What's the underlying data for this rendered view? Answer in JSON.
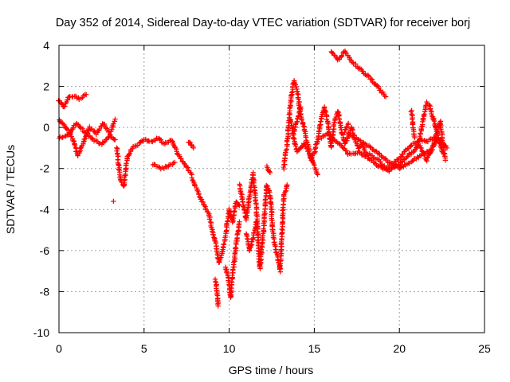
{
  "chart_data": {
    "type": "scatter",
    "title": "Day 352 of 2014, Sidereal Day-to-day VTEC variation (SDTVAR) for receiver borj",
    "xlabel": "GPS time / hours",
    "ylabel": "SDTVAR / TECUs",
    "xlim": [
      0,
      25
    ],
    "ylim": [
      -10,
      4
    ],
    "xticks": [
      0,
      5,
      10,
      15,
      20,
      25
    ],
    "yticks": [
      -10,
      -8,
      -6,
      -4,
      -2,
      0,
      2,
      4
    ],
    "grid": true,
    "marker": "+",
    "color": "#ff0000",
    "series": [
      {
        "name": "SDTVAR",
        "segments": [
          [
            [
              0.0,
              1.3
            ],
            [
              0.3,
              1.0
            ],
            [
              0.6,
              1.5
            ],
            [
              0.9,
              1.5
            ],
            [
              1.2,
              1.4
            ],
            [
              1.6,
              1.6
            ]
          ],
          [
            [
              0.0,
              0.4
            ],
            [
              0.4,
              0.0
            ],
            [
              0.8,
              -0.5
            ],
            [
              1.1,
              -1.4
            ],
            [
              1.4,
              -0.8
            ],
            [
              1.8,
              0.0
            ],
            [
              2.2,
              -0.3
            ],
            [
              2.6,
              0.2
            ],
            [
              3.0,
              -0.3
            ],
            [
              3.3,
              0.4
            ]
          ],
          [
            [
              0.0,
              -0.5
            ],
            [
              0.5,
              -0.4
            ],
            [
              1.0,
              0.2
            ],
            [
              1.5,
              -0.2
            ],
            [
              2.0,
              -0.6
            ],
            [
              2.5,
              -0.8
            ],
            [
              3.0,
              -0.4
            ],
            [
              3.3,
              -0.6
            ]
          ],
          [
            [
              3.2,
              -3.6
            ]
          ],
          [
            [
              3.4,
              -1.0
            ],
            [
              3.6,
              -2.5
            ],
            [
              3.8,
              -2.9
            ],
            [
              4.0,
              -1.5
            ],
            [
              4.3,
              -1.0
            ],
            [
              4.7,
              -0.8
            ],
            [
              5.0,
              -0.6
            ],
            [
              5.4,
              -0.7
            ],
            [
              5.8,
              -0.5
            ],
            [
              6.2,
              -0.8
            ],
            [
              6.6,
              -0.6
            ],
            [
              7.0,
              -1.3
            ],
            [
              7.4,
              -1.8
            ],
            [
              7.8,
              -2.3
            ]
          ],
          [
            [
              5.5,
              -1.8
            ],
            [
              6.0,
              -2.0
            ],
            [
              6.4,
              -1.9
            ],
            [
              6.8,
              -1.7
            ]
          ],
          [
            [
              7.6,
              -0.7
            ],
            [
              7.9,
              -1.0
            ]
          ],
          [
            [
              7.8,
              -2.5
            ],
            [
              8.1,
              -3.0
            ],
            [
              8.4,
              -3.6
            ],
            [
              8.8,
              -4.2
            ],
            [
              9.0,
              -5.0
            ],
            [
              9.2,
              -5.6
            ],
            [
              9.4,
              -6.6
            ],
            [
              9.6,
              -6.1
            ],
            [
              9.8,
              -5.2
            ],
            [
              10.0,
              -4.0
            ],
            [
              10.2,
              -4.6
            ],
            [
              10.4,
              -3.6
            ],
            [
              10.6,
              -3.8
            ]
          ],
          [
            [
              9.2,
              -7.4
            ],
            [
              9.3,
              -8.2
            ],
            [
              9.35,
              -8.7
            ]
          ],
          [
            [
              9.8,
              -6.8
            ],
            [
              10.0,
              -7.6
            ],
            [
              10.1,
              -8.3
            ],
            [
              10.2,
              -7.2
            ],
            [
              10.4,
              -5.8
            ],
            [
              10.6,
              -4.6
            ]
          ],
          [
            [
              10.6,
              -2.8
            ],
            [
              10.8,
              -3.6
            ],
            [
              11.0,
              -4.5
            ],
            [
              11.2,
              -3.4
            ],
            [
              11.4,
              -2.2
            ],
            [
              11.6,
              -4.0
            ],
            [
              11.8,
              -6.9
            ],
            [
              12.0,
              -5.2
            ],
            [
              12.2,
              -2.8
            ],
            [
              12.4,
              -3.2
            ],
            [
              12.6,
              -5.4
            ],
            [
              12.8,
              -6.2
            ],
            [
              13.0,
              -7.0
            ],
            [
              13.2,
              -3.4
            ],
            [
              13.4,
              -2.8
            ]
          ],
          [
            [
              11.0,
              -5.2
            ],
            [
              11.2,
              -6.0
            ],
            [
              11.4,
              -5.4
            ],
            [
              11.6,
              -4.6
            ]
          ],
          [
            [
              12.2,
              -1.9
            ],
            [
              12.4,
              -2.2
            ]
          ],
          [
            [
              13.2,
              -2.0
            ],
            [
              13.4,
              -0.8
            ],
            [
              13.6,
              1.2
            ],
            [
              13.8,
              2.3
            ],
            [
              14.0,
              1.8
            ],
            [
              14.2,
              0.6
            ],
            [
              14.4,
              0.0
            ],
            [
              14.6,
              -0.8
            ],
            [
              14.8,
              -1.6
            ],
            [
              15.0,
              -1.2
            ],
            [
              15.2,
              -0.6
            ],
            [
              15.4,
              0.4
            ],
            [
              15.6,
              1.0
            ],
            [
              15.8,
              0.2
            ],
            [
              16.0,
              -1.0
            ],
            [
              16.2,
              0.4
            ],
            [
              16.4,
              0.8
            ],
            [
              16.6,
              -0.2
            ],
            [
              16.8,
              -0.8
            ],
            [
              17.0,
              -0.4
            ],
            [
              17.2,
              0.0
            ],
            [
              17.4,
              -0.6
            ],
            [
              17.6,
              -1.0
            ],
            [
              17.8,
              -0.8
            ],
            [
              18.0,
              -1.2
            ],
            [
              18.4,
              -1.4
            ],
            [
              18.8,
              -1.6
            ],
            [
              19.2,
              -2.0
            ],
            [
              19.6,
              -1.8
            ],
            [
              20.0,
              -1.5
            ],
            [
              20.4,
              -1.1
            ],
            [
              20.8,
              -0.8
            ],
            [
              21.2,
              -0.6
            ],
            [
              21.6,
              -0.7
            ],
            [
              22.0,
              -0.5
            ],
            [
              22.4,
              -0.6
            ],
            [
              22.8,
              -1.0
            ]
          ],
          [
            [
              13.6,
              0.4
            ],
            [
              13.8,
              -0.6
            ],
            [
              14.0,
              -1.2
            ],
            [
              14.4,
              -0.8
            ],
            [
              14.8,
              -1.4
            ],
            [
              15.2,
              -2.3
            ]
          ],
          [
            [
              15.4,
              -0.5
            ],
            [
              15.8,
              -0.3
            ],
            [
              16.2,
              -0.6
            ],
            [
              16.6,
              -0.9
            ],
            [
              17.0,
              -1.3
            ],
            [
              17.6,
              -1.2
            ],
            [
              18.2,
              -1.5
            ],
            [
              18.8,
              -1.9
            ],
            [
              19.4,
              -2.1
            ],
            [
              20.0,
              -1.8
            ],
            [
              20.6,
              -1.3
            ],
            [
              21.2,
              -0.9
            ],
            [
              21.6,
              -1.6
            ],
            [
              22.0,
              -0.9
            ],
            [
              22.4,
              0.3
            ],
            [
              22.7,
              -1.6
            ]
          ],
          [
            [
              16.0,
              3.7
            ],
            [
              16.4,
              3.3
            ],
            [
              16.8,
              3.7
            ],
            [
              17.2,
              3.2
            ],
            [
              17.6,
              2.9
            ],
            [
              18.0,
              2.6
            ],
            [
              18.4,
              2.3
            ],
            [
              18.8,
              1.9
            ],
            [
              19.2,
              1.5
            ]
          ],
          [
            [
              17.0,
              -0.3
            ],
            [
              17.6,
              -0.6
            ],
            [
              18.2,
              -0.9
            ],
            [
              18.8,
              -1.3
            ],
            [
              19.4,
              -1.7
            ],
            [
              20.0,
              -2.0
            ],
            [
              20.6,
              -1.7
            ],
            [
              21.2,
              -1.4
            ],
            [
              21.8,
              -1.1
            ],
            [
              22.2,
              -0.6
            ]
          ],
          [
            [
              21.0,
              -1.0
            ],
            [
              21.2,
              -0.5
            ],
            [
              21.4,
              0.4
            ],
            [
              21.6,
              1.2
            ],
            [
              21.8,
              1.0
            ],
            [
              22.0,
              0.4
            ],
            [
              22.2,
              -0.2
            ],
            [
              22.4,
              -0.9
            ],
            [
              22.6,
              -1.3
            ]
          ],
          [
            [
              20.7,
              0.8
            ],
            [
              20.8,
              0.1
            ],
            [
              20.9,
              -0.5
            ]
          ],
          [
            [
              16.8,
              -0.2
            ],
            [
              17.0,
              0.2
            ]
          ],
          [
            [
              13.8,
              -0.3
            ],
            [
              14.0,
              0.4
            ],
            [
              14.2,
              1.0
            ]
          ]
        ]
      }
    ]
  }
}
